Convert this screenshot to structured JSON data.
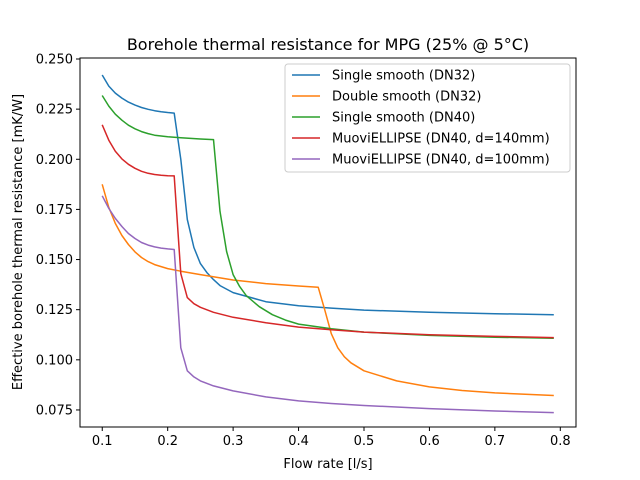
{
  "chart_data": {
    "type": "line",
    "title": "Borehole thermal resistance for MPG (25% @ 5°C)",
    "xlabel": "Flow rate [l/s]",
    "ylabel": "Effective borehole thermal resistance [mK/W]",
    "xlim": [
      0.066,
      0.824
    ],
    "ylim": [
      0.0665,
      0.2505
    ],
    "xticks": [
      0.1,
      0.2,
      0.3,
      0.4,
      0.5,
      0.6,
      0.7,
      0.8
    ],
    "xtick_labels": [
      "0.1",
      "0.2",
      "0.3",
      "0.4",
      "0.5",
      "0.6",
      "0.7",
      "0.8"
    ],
    "yticks": [
      0.075,
      0.1,
      0.125,
      0.15,
      0.175,
      0.2,
      0.225,
      0.25
    ],
    "ytick_labels": [
      "0.075",
      "0.100",
      "0.125",
      "0.150",
      "0.175",
      "0.200",
      "0.225",
      "0.250"
    ],
    "grid": false,
    "legend_position": "top-right",
    "series": [
      {
        "name": "Single smooth (DN32)",
        "color": "#1f77b4",
        "points": [
          [
            0.1,
            0.242
          ],
          [
            0.11,
            0.2365
          ],
          [
            0.12,
            0.233
          ],
          [
            0.13,
            0.2305
          ],
          [
            0.14,
            0.2285
          ],
          [
            0.15,
            0.227
          ],
          [
            0.16,
            0.2258
          ],
          [
            0.17,
            0.2249
          ],
          [
            0.18,
            0.2242
          ],
          [
            0.19,
            0.2237
          ],
          [
            0.2,
            0.2233
          ],
          [
            0.21,
            0.223
          ],
          [
            0.22,
            0.2
          ],
          [
            0.23,
            0.17
          ],
          [
            0.24,
            0.156
          ],
          [
            0.25,
            0.148
          ],
          [
            0.26,
            0.1435
          ],
          [
            0.27,
            0.14
          ],
          [
            0.28,
            0.137
          ],
          [
            0.3,
            0.1335
          ],
          [
            0.35,
            0.129
          ],
          [
            0.4,
            0.127
          ],
          [
            0.45,
            0.1258
          ],
          [
            0.5,
            0.1248
          ],
          [
            0.6,
            0.1237
          ],
          [
            0.7,
            0.123
          ],
          [
            0.79,
            0.1225
          ]
        ]
      },
      {
        "name": "Double smooth (DN32)",
        "color": "#ff7f0e",
        "points": [
          [
            0.1,
            0.1875
          ],
          [
            0.11,
            0.176
          ],
          [
            0.12,
            0.168
          ],
          [
            0.13,
            0.162
          ],
          [
            0.14,
            0.1575
          ],
          [
            0.15,
            0.1538
          ],
          [
            0.16,
            0.151
          ],
          [
            0.17,
            0.149
          ],
          [
            0.18,
            0.1475
          ],
          [
            0.2,
            0.1455
          ],
          [
            0.22,
            0.1442
          ],
          [
            0.25,
            0.1425
          ],
          [
            0.3,
            0.1398
          ],
          [
            0.35,
            0.138
          ],
          [
            0.4,
            0.1368
          ],
          [
            0.43,
            0.1362
          ],
          [
            0.44,
            0.125
          ],
          [
            0.45,
            0.113
          ],
          [
            0.46,
            0.106
          ],
          [
            0.47,
            0.1015
          ],
          [
            0.48,
            0.0985
          ],
          [
            0.5,
            0.0945
          ],
          [
            0.55,
            0.0895
          ],
          [
            0.6,
            0.0865
          ],
          [
            0.65,
            0.0847
          ],
          [
            0.7,
            0.0835
          ],
          [
            0.79,
            0.0822
          ]
        ]
      },
      {
        "name": "Single smooth (DN40)",
        "color": "#2ca02c",
        "points": [
          [
            0.1,
            0.2318
          ],
          [
            0.11,
            0.2265
          ],
          [
            0.12,
            0.2225
          ],
          [
            0.13,
            0.2195
          ],
          [
            0.14,
            0.217
          ],
          [
            0.15,
            0.2152
          ],
          [
            0.16,
            0.2138
          ],
          [
            0.17,
            0.2128
          ],
          [
            0.18,
            0.212
          ],
          [
            0.2,
            0.2112
          ],
          [
            0.22,
            0.2107
          ],
          [
            0.25,
            0.2101
          ],
          [
            0.27,
            0.2098
          ],
          [
            0.28,
            0.174
          ],
          [
            0.29,
            0.154
          ],
          [
            0.3,
            0.1425
          ],
          [
            0.31,
            0.1365
          ],
          [
            0.32,
            0.132
          ],
          [
            0.34,
            0.1265
          ],
          [
            0.36,
            0.1225
          ],
          [
            0.38,
            0.1198
          ],
          [
            0.4,
            0.1178
          ],
          [
            0.45,
            0.1155
          ],
          [
            0.5,
            0.1138
          ],
          [
            0.6,
            0.1122
          ],
          [
            0.7,
            0.1113
          ],
          [
            0.79,
            0.1108
          ]
        ]
      },
      {
        "name": "MuoviELLIPSE (DN40, d=140mm)",
        "color": "#d62728",
        "points": [
          [
            0.1,
            0.2172
          ],
          [
            0.11,
            0.2095
          ],
          [
            0.12,
            0.204
          ],
          [
            0.13,
            0.2002
          ],
          [
            0.14,
            0.1975
          ],
          [
            0.15,
            0.1955
          ],
          [
            0.16,
            0.194
          ],
          [
            0.17,
            0.193
          ],
          [
            0.18,
            0.1924
          ],
          [
            0.19,
            0.192
          ],
          [
            0.2,
            0.1918
          ],
          [
            0.21,
            0.1917
          ],
          [
            0.22,
            0.143
          ],
          [
            0.23,
            0.131
          ],
          [
            0.24,
            0.128
          ],
          [
            0.25,
            0.1262
          ],
          [
            0.27,
            0.1237
          ],
          [
            0.3,
            0.1212
          ],
          [
            0.35,
            0.1185
          ],
          [
            0.4,
            0.1163
          ],
          [
            0.45,
            0.115
          ],
          [
            0.5,
            0.1138
          ],
          [
            0.6,
            0.1125
          ],
          [
            0.7,
            0.1117
          ],
          [
            0.79,
            0.1111
          ]
        ]
      },
      {
        "name": "MuoviELLIPSE (DN40, d=100mm)",
        "color": "#9467bd",
        "points": [
          [
            0.1,
            0.1818
          ],
          [
            0.11,
            0.1755
          ],
          [
            0.12,
            0.1705
          ],
          [
            0.13,
            0.1665
          ],
          [
            0.14,
            0.163
          ],
          [
            0.15,
            0.1605
          ],
          [
            0.16,
            0.1585
          ],
          [
            0.17,
            0.1572
          ],
          [
            0.18,
            0.1563
          ],
          [
            0.19,
            0.1557
          ],
          [
            0.2,
            0.1553
          ],
          [
            0.21,
            0.155
          ],
          [
            0.22,
            0.106
          ],
          [
            0.23,
            0.0945
          ],
          [
            0.24,
            0.0915
          ],
          [
            0.25,
            0.0895
          ],
          [
            0.27,
            0.087
          ],
          [
            0.3,
            0.0845
          ],
          [
            0.35,
            0.0815
          ],
          [
            0.4,
            0.0795
          ],
          [
            0.45,
            0.0782
          ],
          [
            0.5,
            0.0772
          ],
          [
            0.6,
            0.0757
          ],
          [
            0.7,
            0.0745
          ],
          [
            0.79,
            0.0737
          ]
        ]
      }
    ]
  }
}
